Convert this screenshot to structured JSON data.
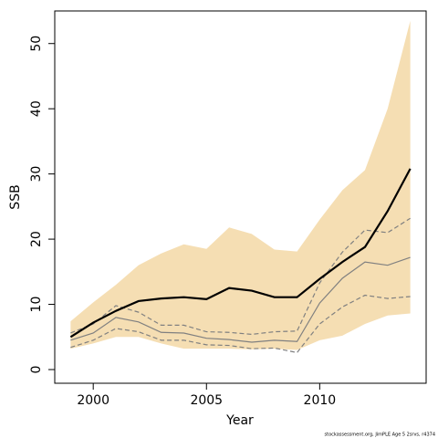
{
  "chart_data": {
    "type": "line",
    "x_label": "Year",
    "y_label": "SSB",
    "footnote": "stockassessment.org, JimPLE Age 5 2srvs, r4374",
    "x": [
      1999,
      2000,
      2001,
      2002,
      2003,
      2004,
      2005,
      2006,
      2007,
      2008,
      2009,
      2010,
      2011,
      2012,
      2013,
      2014
    ],
    "band": {
      "color": "#f5deb3",
      "upper": [
        7.4,
        10.3,
        13,
        16,
        17.8,
        19.2,
        18.5,
        21.8,
        20.8,
        18.4,
        18.1,
        23,
        27.5,
        30.6,
        40,
        53.5
      ],
      "lower": [
        3.2,
        4,
        5,
        5,
        4,
        3.2,
        3.2,
        3.2,
        3.1,
        3.2,
        3,
        4.5,
        5.2,
        7,
        8.3,
        8.6
      ]
    },
    "series": [
      {
        "color": "#808080",
        "width": 1.2,
        "dashed": true,
        "values": [
          3.4,
          4.5,
          6.3,
          5.8,
          4.5,
          4.5,
          3.8,
          3.7,
          3.2,
          3.3,
          2.6,
          7,
          9.6,
          11.4,
          10.9,
          11.2
        ]
      },
      {
        "color": "#808080",
        "width": 1.2,
        "dashed": true,
        "values": [
          5.6,
          7,
          9.8,
          8.8,
          6.8,
          6.8,
          5.8,
          5.7,
          5.4,
          5.8,
          5.9,
          13.3,
          18,
          21.4,
          21,
          23.2
        ]
      },
      {
        "color": "#808080",
        "width": 1.2,
        "dashed": false,
        "values": [
          4.5,
          5.6,
          8,
          7.3,
          5.7,
          5.6,
          4.8,
          4.6,
          4.2,
          4.5,
          4.3,
          10.2,
          14,
          16.5,
          16,
          17.2
        ]
      },
      {
        "color": "#000000",
        "width": 2.2,
        "dashed": false,
        "values": [
          5,
          7.2,
          9,
          10.5,
          10.9,
          11.1,
          10.8,
          12.5,
          12.1,
          11.1,
          11.1,
          13.9,
          16.5,
          18.8,
          24.3,
          30.8
        ]
      }
    ],
    "xlim": [
      1998.3,
      2014.7
    ],
    "ylim": [
      -2.1,
      55
    ],
    "xticks": [
      2000,
      2005,
      2010
    ],
    "yticks": [
      0,
      10,
      20,
      30,
      40,
      50
    ]
  }
}
